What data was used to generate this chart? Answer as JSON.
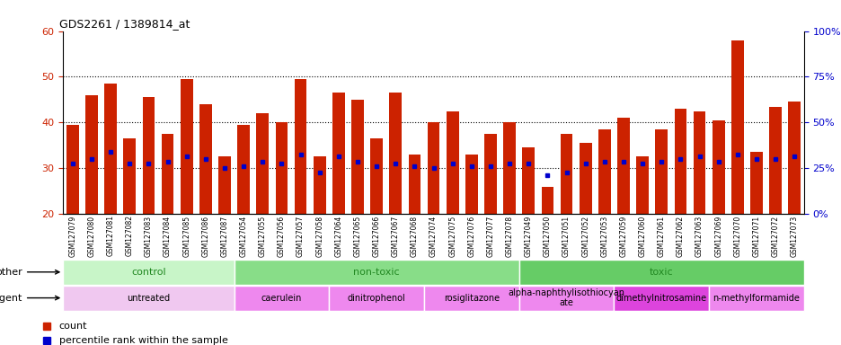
{
  "title": "GDS2261 / 1389814_at",
  "samples": [
    "GSM127079",
    "GSM127080",
    "GSM127081",
    "GSM127082",
    "GSM127083",
    "GSM127084",
    "GSM127085",
    "GSM127086",
    "GSM127087",
    "GSM127054",
    "GSM127055",
    "GSM127056",
    "GSM127057",
    "GSM127058",
    "GSM127064",
    "GSM127065",
    "GSM127066",
    "GSM127067",
    "GSM127068",
    "GSM127074",
    "GSM127075",
    "GSM127076",
    "GSM127077",
    "GSM127078",
    "GSM127049",
    "GSM127050",
    "GSM127051",
    "GSM127052",
    "GSM127053",
    "GSM127059",
    "GSM127060",
    "GSM127061",
    "GSM127062",
    "GSM127063",
    "GSM127069",
    "GSM127070",
    "GSM127071",
    "GSM127072",
    "GSM127073"
  ],
  "counts": [
    39.5,
    46.0,
    48.5,
    36.5,
    45.5,
    37.5,
    49.5,
    44.0,
    32.5,
    39.5,
    42.0,
    40.0,
    49.5,
    32.5,
    46.5,
    45.0,
    36.5,
    46.5,
    33.0,
    40.0,
    42.5,
    33.0,
    37.5,
    40.0,
    34.5,
    26.0,
    37.5,
    35.5,
    38.5,
    41.0,
    32.5,
    38.5,
    43.0,
    42.5,
    40.5,
    58.0,
    33.5,
    43.5,
    44.5
  ],
  "percentile_ranks": [
    31.0,
    32.0,
    33.5,
    31.0,
    31.0,
    31.5,
    32.5,
    32.0,
    30.0,
    30.5,
    31.5,
    31.0,
    33.0,
    29.0,
    32.5,
    31.5,
    30.5,
    31.0,
    30.5,
    30.0,
    31.0,
    30.5,
    30.5,
    31.0,
    31.0,
    28.5,
    29.0,
    31.0,
    31.5,
    31.5,
    31.0,
    31.5,
    32.0,
    32.5,
    31.5,
    33.0,
    32.0,
    32.0,
    32.5
  ],
  "other_groups": [
    {
      "label": "control",
      "start": 0,
      "end": 9,
      "color": "#c8f5c8"
    },
    {
      "label": "non-toxic",
      "start": 9,
      "end": 24,
      "color": "#88dd88"
    },
    {
      "label": "toxic",
      "start": 24,
      "end": 39,
      "color": "#66cc66"
    }
  ],
  "agent_groups": [
    {
      "label": "untreated",
      "start": 0,
      "end": 9,
      "color": "#f0c8f0"
    },
    {
      "label": "caerulein",
      "start": 9,
      "end": 14,
      "color": "#ee88ee"
    },
    {
      "label": "dinitrophenol",
      "start": 14,
      "end": 19,
      "color": "#ee88ee"
    },
    {
      "label": "rosiglitazone",
      "start": 19,
      "end": 24,
      "color": "#ee88ee"
    },
    {
      "label": "alpha-naphthylisothiocyan\nate",
      "start": 24,
      "end": 29,
      "color": "#ee88ee"
    },
    {
      "label": "dimethylnitrosamine",
      "start": 29,
      "end": 34,
      "color": "#dd44dd"
    },
    {
      "label": "n-methylformamide",
      "start": 34,
      "end": 39,
      "color": "#ee88ee"
    }
  ],
  "ylim_left": [
    20,
    60
  ],
  "ylim_right": [
    0,
    100
  ],
  "yticks_left": [
    20,
    30,
    40,
    50,
    60
  ],
  "yticks_right": [
    0,
    25,
    50,
    75,
    100
  ],
  "bar_color": "#cc2200",
  "dot_color": "#0000cc",
  "left_tick_color": "#cc2200",
  "right_tick_color": "#0000cc",
  "xticklabel_bg": "#d8d8d8"
}
